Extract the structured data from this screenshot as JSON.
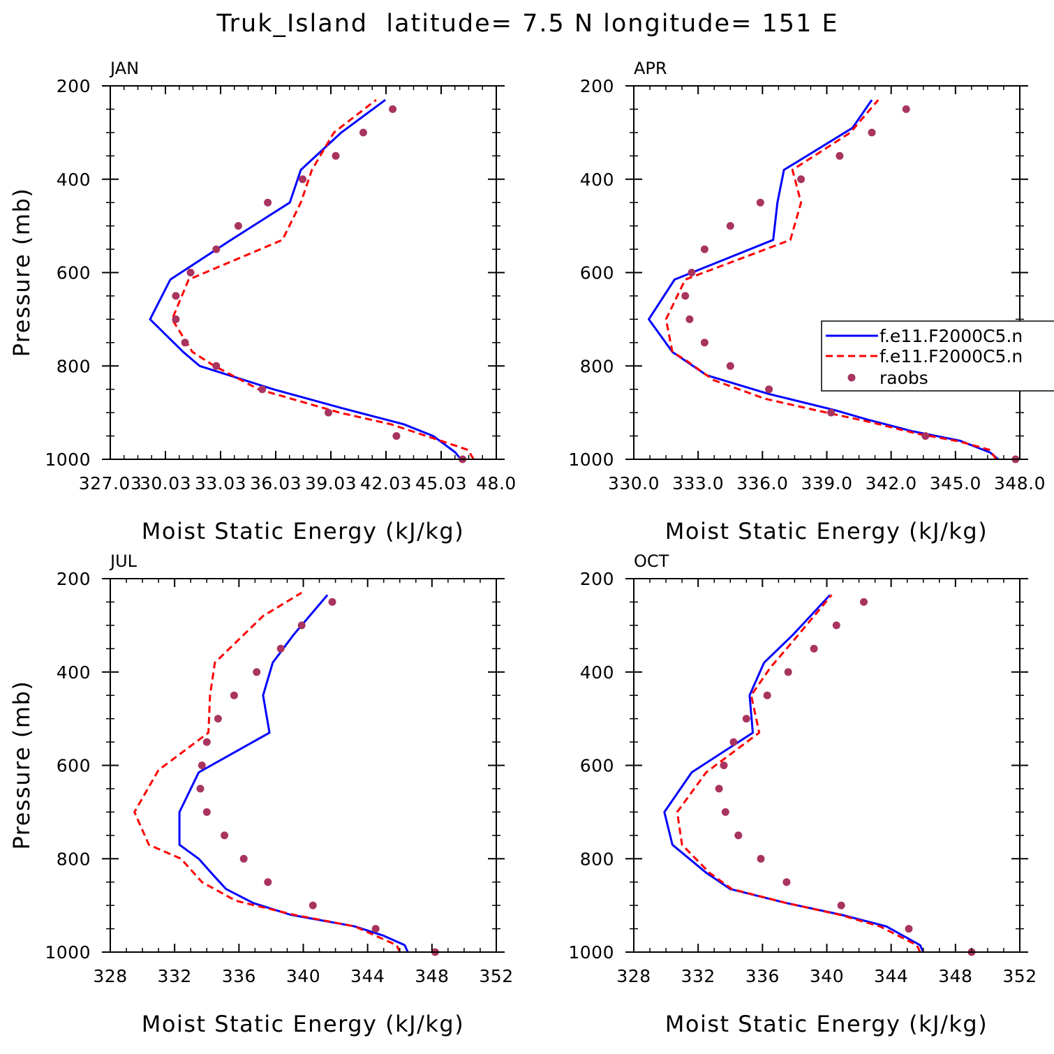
{
  "title": "Truk_Island  latitude= 7.5 N longitude= 151 E",
  "colors": {
    "model_1": "#0000ff",
    "model_2": "#ff0000",
    "raobs": "#a8345f"
  },
  "legend": {
    "placement": "right side of APR panel, clipped by figure edge",
    "entries": [
      "f.e11.F2000C5.n",
      "f.e11.F2000C5.n",
      "raobs"
    ]
  },
  "chart_data": [
    {
      "type": "line",
      "title": "JAN",
      "xlabel": "Moist Static Energy (kJ/kg)",
      "ylabel": "Pressure (mb)",
      "xlim": [
        327.034,
        348.034
      ],
      "ylim": [
        1000,
        200
      ],
      "xticks": [
        "327.03",
        "30.03",
        "33.03",
        "36.03",
        "39.03",
        "42.03",
        "45.03",
        "48.0"
      ],
      "yticks": [
        "200",
        "400",
        "600",
        "800",
        "1000"
      ],
      "series": [
        {
          "style": "solid",
          "points": [
            [
              346.1,
              1000
            ],
            [
              345.8,
              985
            ],
            [
              344.6,
              950
            ],
            [
              343.0,
              925
            ],
            [
              339.6,
              890
            ],
            [
              335.9,
              850
            ],
            [
              331.9,
              800
            ],
            [
              331.0,
              770
            ],
            [
              330.1,
              735
            ],
            [
              329.2,
              700
            ],
            [
              330.3,
              615
            ],
            [
              333.6,
              530
            ],
            [
              336.8,
              450
            ],
            [
              337.4,
              380
            ],
            [
              339.6,
              300
            ],
            [
              342.0,
              230
            ]
          ]
        },
        {
          "style": "dashed",
          "points": [
            [
              346.8,
              1000
            ],
            [
              346.5,
              980
            ],
            [
              345.0,
              960
            ],
            [
              342.3,
              925
            ],
            [
              339.5,
              900
            ],
            [
              335.1,
              850
            ],
            [
              332.7,
              800
            ],
            [
              331.5,
              770
            ],
            [
              330.4,
              700
            ],
            [
              331.3,
              615
            ],
            [
              336.4,
              530
            ],
            [
              337.4,
              450
            ],
            [
              338.0,
              380
            ],
            [
              339.2,
              300
            ],
            [
              341.5,
              230
            ]
          ]
        },
        {
          "style": "markers",
          "points": [
            [
              346.2,
              1000
            ],
            [
              342.6,
              950
            ],
            [
              338.9,
              900
            ],
            [
              335.3,
              850
            ],
            [
              332.8,
              800
            ],
            [
              331.1,
              750
            ],
            [
              330.6,
              700
            ],
            [
              330.6,
              650
            ],
            [
              331.4,
              600
            ],
            [
              332.8,
              550
            ],
            [
              334.0,
              500
            ],
            [
              335.6,
              450
            ],
            [
              337.5,
              400
            ],
            [
              339.3,
              350
            ],
            [
              340.8,
              300
            ],
            [
              342.4,
              250
            ]
          ]
        }
      ]
    },
    {
      "type": "line",
      "title": "APR",
      "xlabel": "Moist Static Energy (kJ/kg)",
      "ylabel": "",
      "xlim": [
        330.0,
        348.0
      ],
      "ylim": [
        1000,
        200
      ],
      "xticks": [
        "330.0",
        "333.0",
        "336.0",
        "339.0",
        "342.0",
        "345.0",
        "348.0"
      ],
      "yticks": [
        "200",
        "400",
        "600",
        "800",
        "1000"
      ],
      "series": [
        {
          "style": "solid",
          "points": [
            [
              347.0,
              1000
            ],
            [
              346.6,
              985
            ],
            [
              345.2,
              960
            ],
            [
              343.0,
              940
            ],
            [
              340.9,
              915
            ],
            [
              339.4,
              895
            ],
            [
              336.3,
              860
            ],
            [
              333.4,
              820
            ],
            [
              331.8,
              770
            ],
            [
              330.7,
              700
            ],
            [
              331.9,
              615
            ],
            [
              336.5,
              530
            ],
            [
              336.7,
              450
            ],
            [
              337.0,
              380
            ],
            [
              340.2,
              290
            ],
            [
              341.1,
              230
            ]
          ]
        },
        {
          "style": "dashed",
          "points": [
            [
              346.9,
              1000
            ],
            [
              346.6,
              980
            ],
            [
              345.2,
              962
            ],
            [
              343.2,
              945
            ],
            [
              341.0,
              920
            ],
            [
              338.5,
              895
            ],
            [
              336.1,
              870
            ],
            [
              333.7,
              830
            ],
            [
              332.5,
              790
            ],
            [
              331.8,
              770
            ],
            [
              331.5,
              700
            ],
            [
              332.4,
              615
            ],
            [
              337.3,
              530
            ],
            [
              337.8,
              450
            ],
            [
              337.4,
              380
            ],
            [
              340.1,
              300
            ],
            [
              341.4,
              230
            ]
          ]
        },
        {
          "style": "markers",
          "points": [
            [
              347.8,
              1000
            ],
            [
              343.6,
              950
            ],
            [
              339.2,
              900
            ],
            [
              336.3,
              850
            ],
            [
              334.5,
              800
            ],
            [
              333.3,
              750
            ],
            [
              332.6,
              700
            ],
            [
              332.4,
              650
            ],
            [
              332.7,
              600
            ],
            [
              333.3,
              550
            ],
            [
              334.5,
              500
            ],
            [
              335.9,
              450
            ],
            [
              337.8,
              400
            ],
            [
              339.6,
              350
            ],
            [
              341.1,
              300
            ],
            [
              342.7,
              250
            ]
          ]
        }
      ]
    },
    {
      "type": "line",
      "title": "JUL",
      "xlabel": "Moist Static Energy (kJ/kg)",
      "ylabel": "Pressure (mb)",
      "xlim": [
        328,
        352
      ],
      "ylim": [
        1000,
        200
      ],
      "xticks": [
        "328",
        "332",
        "336",
        "340",
        "344",
        "348",
        "352"
      ],
      "yticks": [
        "200",
        "400",
        "600",
        "800",
        "1000"
      ],
      "series": [
        {
          "style": "solid",
          "points": [
            [
              346.5,
              1000
            ],
            [
              346.3,
              985
            ],
            [
              345.0,
              965
            ],
            [
              343.2,
              945
            ],
            [
              339.2,
              920
            ],
            [
              336.9,
              895
            ],
            [
              335.2,
              865
            ],
            [
              334.4,
              835
            ],
            [
              333.5,
              800
            ],
            [
              332.3,
              770
            ],
            [
              332.3,
              700
            ],
            [
              333.5,
              615
            ],
            [
              337.9,
              530
            ],
            [
              337.5,
              450
            ],
            [
              338.1,
              380
            ],
            [
              339.4,
              320
            ],
            [
              341.5,
              235
            ]
          ]
        },
        {
          "style": "dashed",
          "points": [
            [
              346.0,
              1000
            ],
            [
              345.8,
              985
            ],
            [
              344.5,
              965
            ],
            [
              343.2,
              945
            ],
            [
              339.4,
              920
            ],
            [
              335.8,
              890
            ],
            [
              333.7,
              850
            ],
            [
              332.4,
              800
            ],
            [
              330.4,
              770
            ],
            [
              329.5,
              700
            ],
            [
              331.0,
              610
            ],
            [
              334.1,
              530
            ],
            [
              334.2,
              450
            ],
            [
              334.5,
              380
            ],
            [
              337.5,
              280
            ],
            [
              339.9,
              230
            ]
          ]
        },
        {
          "style": "markers",
          "points": [
            [
              348.2,
              1000
            ],
            [
              344.5,
              950
            ],
            [
              340.6,
              900
            ],
            [
              337.8,
              850
            ],
            [
              336.3,
              800
            ],
            [
              335.1,
              750
            ],
            [
              334.0,
              700
            ],
            [
              333.6,
              650
            ],
            [
              333.7,
              600
            ],
            [
              334.0,
              550
            ],
            [
              334.7,
              500
            ],
            [
              335.7,
              450
            ],
            [
              337.1,
              400
            ],
            [
              338.6,
              350
            ],
            [
              339.9,
              300
            ],
            [
              341.8,
              250
            ]
          ]
        }
      ]
    },
    {
      "type": "line",
      "title": "OCT",
      "xlabel": "Moist Static Energy (kJ/kg)",
      "ylabel": "",
      "xlim": [
        328,
        352
      ],
      "ylim": [
        1000,
        200
      ],
      "xticks": [
        "328",
        "332",
        "336",
        "340",
        "344",
        "348",
        "352"
      ],
      "yticks": [
        "200",
        "400",
        "600",
        "800",
        "1000"
      ],
      "series": [
        {
          "style": "solid",
          "points": [
            [
              346.0,
              1000
            ],
            [
              345.8,
              985
            ],
            [
              343.7,
              945
            ],
            [
              340.9,
              920
            ],
            [
              337.5,
              895
            ],
            [
              334.0,
              865
            ],
            [
              332.5,
              830
            ],
            [
              330.4,
              770
            ],
            [
              329.9,
              700
            ],
            [
              331.6,
              615
            ],
            [
              335.4,
              530
            ],
            [
              335.2,
              450
            ],
            [
              336.1,
              380
            ],
            [
              337.9,
              320
            ],
            [
              340.2,
              235
            ]
          ]
        },
        {
          "style": "dashed",
          "points": [
            [
              345.8,
              1000
            ],
            [
              345.6,
              985
            ],
            [
              343.3,
              945
            ],
            [
              340.8,
              920
            ],
            [
              337.5,
              895
            ],
            [
              334.1,
              865
            ],
            [
              332.7,
              830
            ],
            [
              331.0,
              770
            ],
            [
              330.7,
              700
            ],
            [
              332.5,
              615
            ],
            [
              335.8,
              530
            ],
            [
              335.3,
              450
            ],
            [
              336.5,
              390
            ],
            [
              338.0,
              330
            ],
            [
              340.3,
              235
            ]
          ]
        },
        {
          "style": "markers",
          "points": [
            [
              349.0,
              1000
            ],
            [
              345.1,
              950
            ],
            [
              340.9,
              900
            ],
            [
              337.5,
              850
            ],
            [
              335.9,
              800
            ],
            [
              334.5,
              750
            ],
            [
              333.7,
              700
            ],
            [
              333.3,
              650
            ],
            [
              333.6,
              600
            ],
            [
              334.2,
              550
            ],
            [
              335.0,
              500
            ],
            [
              336.3,
              450
            ],
            [
              337.6,
              400
            ],
            [
              339.2,
              350
            ],
            [
              340.6,
              300
            ],
            [
              342.3,
              250
            ]
          ]
        }
      ]
    }
  ]
}
